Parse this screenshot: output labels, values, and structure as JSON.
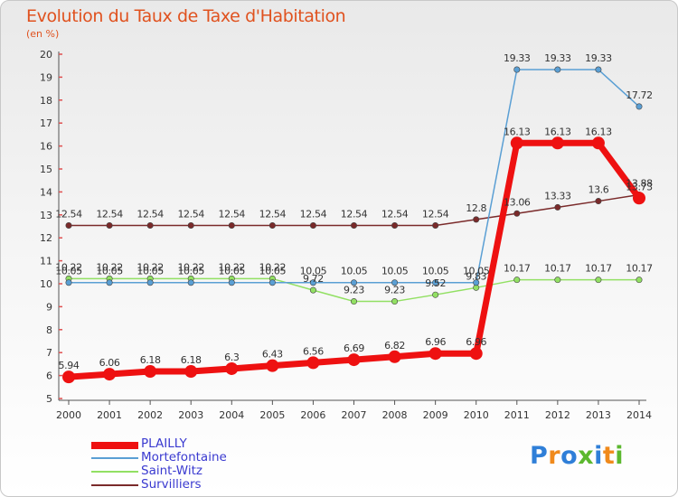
{
  "title": "Evolution du Taux de Taxe d'Habitation",
  "unit_label": "(en %)",
  "logo": {
    "text": "Proxiti",
    "letters": [
      "P",
      "r",
      "o",
      "x",
      "i",
      "t",
      "i"
    ],
    "colors": [
      "#2f7fd8",
      "#f08a1c",
      "#2f7fd8",
      "#5cb82f",
      "#2f7fd8",
      "#f08a1c",
      "#5cb82f"
    ]
  },
  "chart_data": {
    "type": "line",
    "title": "Evolution du Taux de Taxe d'Habitation",
    "ylabel": "(en %)",
    "xlabel": "",
    "categories": [
      "2000",
      "2001",
      "2002",
      "2003",
      "2004",
      "2005",
      "2006",
      "2007",
      "2008",
      "2009",
      "2010",
      "2011",
      "2012",
      "2013",
      "2014"
    ],
    "ylim": [
      5,
      20
    ],
    "yticks": [
      5,
      6,
      7,
      8,
      9,
      10,
      11,
      12,
      13,
      14,
      15,
      16,
      17,
      18,
      19,
      20
    ],
    "grid": false,
    "legend_position": "bottom-left",
    "series": [
      {
        "name": "Survilliers",
        "color": "#7a2a2a",
        "width": 1.5,
        "marker": 3.2,
        "values": [
          12.54,
          12.54,
          12.54,
          12.54,
          12.54,
          12.54,
          12.54,
          12.54,
          12.54,
          12.54,
          12.8,
          13.06,
          13.33,
          13.6,
          13.88
        ],
        "labels": [
          "12.54",
          "12.54",
          "12.54",
          "12.54",
          "12.54",
          "12.54",
          "12.54",
          "12.54",
          "12.54",
          "12.54",
          "12.8",
          "13.06",
          "13.33",
          "13.6",
          "13.88"
        ]
      },
      {
        "name": "Saint-Witz",
        "color": "#92e063",
        "width": 1.5,
        "marker": 3.2,
        "values": [
          10.22,
          10.22,
          10.22,
          10.22,
          10.22,
          10.22,
          9.72,
          9.23,
          9.23,
          9.52,
          9.83,
          10.17,
          10.17,
          10.17,
          10.17
        ],
        "labels": [
          "10.22",
          "10.22",
          "10.22",
          "10.22",
          "10.22",
          "10.22",
          "9.72",
          "9.23",
          "9.23",
          "9.52",
          "9.83",
          "10.17",
          "10.17",
          "10.17",
          "10.17"
        ]
      },
      {
        "name": "Mortefontaine",
        "color": "#5a9fd4",
        "width": 1.5,
        "marker": 3.2,
        "values": [
          10.05,
          10.05,
          10.05,
          10.05,
          10.05,
          10.05,
          10.05,
          10.05,
          10.05,
          10.05,
          10.05,
          19.33,
          19.33,
          19.33,
          17.72
        ],
        "labels": [
          "10.05",
          "10.05",
          "10.05",
          "10.05",
          "10.05",
          "10.05",
          "10.05",
          "10.05",
          "10.05",
          "10.05",
          "10.05",
          "19.33",
          "19.33",
          "19.33",
          "17.72"
        ]
      },
      {
        "name": "PLAILLY",
        "color": "#ee1111",
        "width": 7,
        "marker": 7,
        "values": [
          5.94,
          6.06,
          6.18,
          6.18,
          6.3,
          6.43,
          6.56,
          6.69,
          6.82,
          6.96,
          6.96,
          16.13,
          16.13,
          16.13,
          13.73
        ],
        "labels": [
          "5.94",
          "6.06",
          "6.18",
          "6.18",
          "6.3",
          "6.43",
          "6.56",
          "6.69",
          "6.82",
          "6.96",
          "6.96",
          "16.13",
          "16.13",
          "16.13",
          "13.73"
        ]
      }
    ],
    "legend_order": [
      "PLAILLY",
      "Mortefontaine",
      "Saint-Witz",
      "Survilliers"
    ]
  }
}
